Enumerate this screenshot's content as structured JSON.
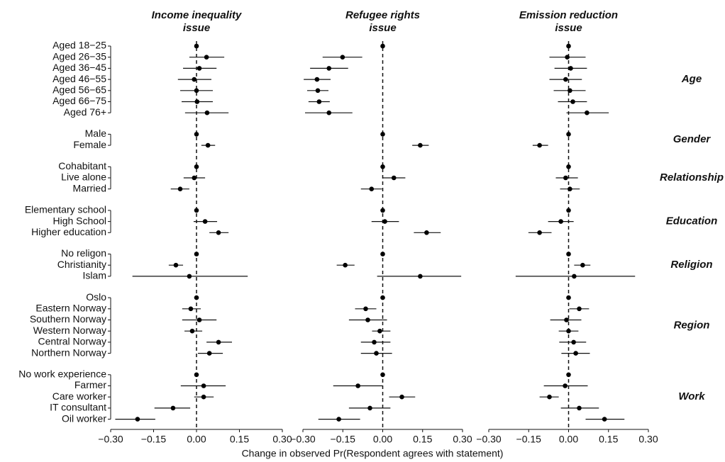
{
  "chart_data": {
    "type": "coefplot",
    "x_label": "Change in observed Pr(Respondent agrees with statement)",
    "xlim": [
      -0.3,
      0.3
    ],
    "xticks": [
      {
        "value": -0.3,
        "label": "−0.30"
      },
      {
        "value": -0.15,
        "label": "−0.15"
      },
      {
        "value": 0,
        "label": "0.00"
      },
      {
        "value": 0.15,
        "label": "0.15"
      },
      {
        "value": 0.3,
        "label": "0.30"
      }
    ],
    "groups": [
      {
        "name": "Age",
        "terms": [
          "Aged 18−25",
          "Aged 26−35",
          "Aged 36−45",
          "Aged 46−55",
          "Aged 56−65",
          "Aged 66−75",
          "Aged 76+"
        ]
      },
      {
        "name": "Gender",
        "terms": [
          "Male",
          "Female"
        ]
      },
      {
        "name": "Relationship",
        "terms": [
          "Cohabitant",
          "Live alone",
          "Married"
        ]
      },
      {
        "name": "Education",
        "terms": [
          "Elementary school",
          "High School",
          "Higher education"
        ]
      },
      {
        "name": "Religion",
        "terms": [
          "No religon",
          "Christianity",
          "Islam"
        ]
      },
      {
        "name": "Region",
        "terms": [
          "Oslo",
          "Eastern Norway",
          "Southern Norway",
          "Western Norway",
          "Central Norway",
          "Northern Norway"
        ]
      },
      {
        "name": "Work",
        "terms": [
          "No work experience",
          "Farmer",
          "Care worker",
          "IT consultant",
          "Oil worker"
        ]
      }
    ],
    "panels": [
      {
        "title_lines": [
          "Income inequality",
          "issue"
        ],
        "estimates": [
          [
            0,
            0.035,
            0.01,
            -0.008,
            0,
            0.002,
            0.037
          ],
          [
            0,
            0.04
          ],
          [
            0,
            -0.008,
            -0.057
          ],
          [
            0,
            0.03,
            0.077
          ],
          [
            0,
            -0.072,
            -0.025
          ],
          [
            0,
            -0.02,
            0.01,
            -0.015,
            0.077,
            0.045
          ],
          [
            0,
            0.025,
            0.025,
            -0.082,
            -0.206
          ]
        ],
        "lower": [
          [
            null,
            -0.025,
            -0.047,
            -0.065,
            -0.057,
            -0.052,
            -0.04
          ],
          [
            null,
            0.017
          ],
          [
            null,
            -0.045,
            -0.09
          ],
          [
            null,
            -0.01,
            0.045
          ],
          [
            null,
            -0.097,
            -0.224
          ],
          [
            null,
            -0.05,
            -0.05,
            -0.042,
            0.035,
            0.005
          ],
          [
            null,
            -0.055,
            -0.008,
            -0.147,
            -0.284
          ]
        ],
        "upper": [
          [
            null,
            0.097,
            0.07,
            0.052,
            0.057,
            0.057,
            0.112
          ],
          [
            null,
            0.065
          ],
          [
            null,
            0.03,
            -0.025
          ],
          [
            null,
            0.072,
            0.112
          ],
          [
            null,
            -0.047,
            0.179
          ],
          [
            null,
            0.015,
            0.07,
            0.02,
            0.124,
            0.092
          ],
          [
            null,
            0.102,
            0.06,
            -0.022,
            -0.144
          ]
        ]
      },
      {
        "title_lines": [
          "Refugee rights",
          "issue"
        ],
        "estimates": [
          [
            0,
            -0.151,
            -0.202,
            -0.247,
            -0.244,
            -0.239,
            -0.202
          ],
          [
            0,
            0.141
          ],
          [
            0,
            0.042,
            -0.042
          ],
          [
            0,
            0.008,
            0.165
          ],
          [
            0,
            -0.141,
            0.141
          ],
          [
            0,
            -0.064,
            -0.056,
            -0.011,
            -0.032,
            -0.024
          ],
          [
            0,
            -0.093,
            0.072,
            -0.048,
            -0.165
          ]
        ],
        "lower": [
          [
            null,
            -0.226,
            -0.273,
            -0.297,
            -0.284,
            -0.279,
            -0.292
          ],
          [
            null,
            0.111
          ],
          [
            null,
            0,
            -0.082
          ],
          [
            null,
            -0.042,
            0.117
          ],
          [
            null,
            -0.173,
            -0.021
          ],
          [
            null,
            -0.104,
            -0.127,
            -0.04,
            -0.082,
            -0.082
          ],
          [
            null,
            -0.186,
            0.024,
            -0.127,
            -0.242
          ]
        ],
        "upper": [
          [
            null,
            -0.077,
            -0.13,
            -0.196,
            -0.204,
            -0.199,
            -0.114
          ],
          [
            null,
            0.173
          ],
          [
            null,
            0.085,
            -0.003
          ],
          [
            null,
            0.061,
            0.218
          ],
          [
            null,
            -0.106,
            0.295
          ],
          [
            null,
            -0.024,
            0.016,
            0.029,
            0.029,
            0.035
          ],
          [
            null,
            0,
            0.122,
            0.029,
            -0.085
          ]
        ]
      },
      {
        "title_lines": [
          "Emission reduction",
          "issue"
        ],
        "estimates": [
          [
            0,
            -0.005,
            0.008,
            -0.011,
            0.005,
            0.016,
            0.069
          ],
          [
            0,
            -0.109
          ],
          [
            0,
            -0.011,
            0.005
          ],
          [
            0,
            -0.029,
            -0.109
          ],
          [
            0,
            0.053,
            0.021
          ],
          [
            0,
            0.04,
            -0.008,
            0,
            0.019,
            0.027
          ],
          [
            0,
            -0.013,
            -0.072,
            0.04,
            0.135
          ]
        ],
        "lower": [
          [
            null,
            -0.072,
            -0.053,
            -0.072,
            -0.056,
            -0.04,
            -0.008
          ],
          [
            null,
            -0.135
          ],
          [
            null,
            -0.048,
            -0.032
          ],
          [
            null,
            -0.077,
            -0.151
          ],
          [
            null,
            0.021,
            -0.199
          ],
          [
            null,
            0.003,
            -0.069,
            -0.037,
            -0.035,
            -0.027
          ],
          [
            null,
            -0.093,
            -0.109,
            -0.029,
            0.064
          ]
        ],
        "upper": [
          [
            null,
            0.064,
            0.069,
            0.05,
            0.064,
            0.069,
            0.151
          ],
          [
            null,
            -0.077
          ],
          [
            null,
            0.035,
            0.042
          ],
          [
            null,
            0.019,
            -0.064
          ],
          [
            null,
            0.082,
            0.25
          ],
          [
            null,
            0.077,
            0.048,
            0.037,
            0.066,
            0.08
          ],
          [
            null,
            0.072,
            -0.037,
            0.114,
            0.21
          ]
        ]
      }
    ]
  }
}
